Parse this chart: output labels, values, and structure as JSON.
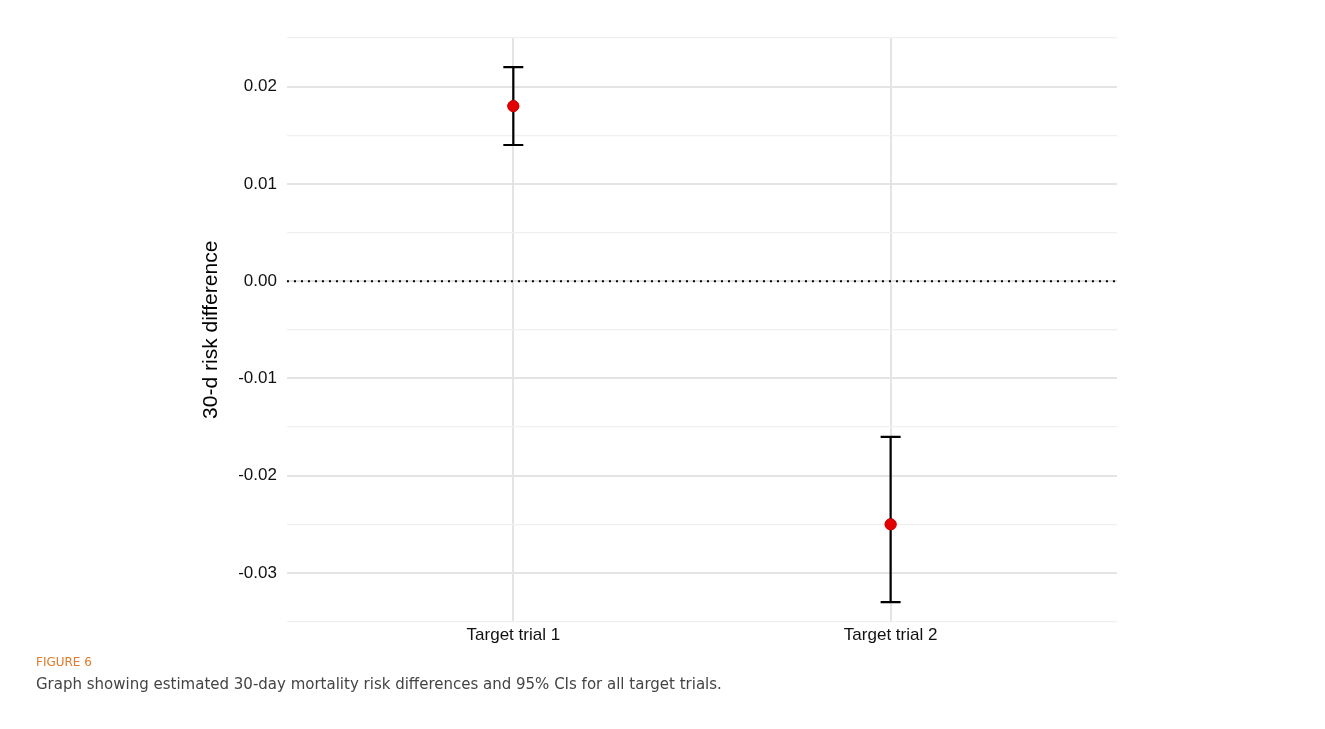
{
  "chart_data": {
    "type": "scatter",
    "ylabel": "30-d risk difference",
    "categories": [
      "Target trial 1",
      "Target trial 2"
    ],
    "values": [
      0.018,
      -0.025
    ],
    "color": "#e00000",
    "marker": "circle",
    "errors": [
      [
        0.014,
        0.022
      ],
      [
        -0.033,
        -0.016
      ]
    ],
    "ylim": [
      -0.035,
      0.025
    ],
    "yticks": [
      {
        "value": -0.035,
        "label": null
      },
      -0.03,
      {
        "value": -0.025,
        "label": null
      },
      -0.02,
      {
        "value": -0.015,
        "label": null
      },
      -0.01,
      {
        "value": -0.005,
        "label": null
      },
      {
        "value": 0,
        "label": "0.00"
      },
      {
        "value": 0.005,
        "label": null
      },
      0.01,
      {
        "value": 0.015,
        "label": null
      },
      0.02,
      {
        "value": 0.025,
        "label": null
      }
    ],
    "grid": true,
    "ref_lines": [
      {
        "axis": "y",
        "value": 0,
        "line_style": "dotted",
        "color": "#000000"
      }
    ],
    "annotations": [
      "FIGURE 6",
      "Graph showing estimated 30-day mortality risk differences and 95% CIs for all target trials."
    ]
  }
}
